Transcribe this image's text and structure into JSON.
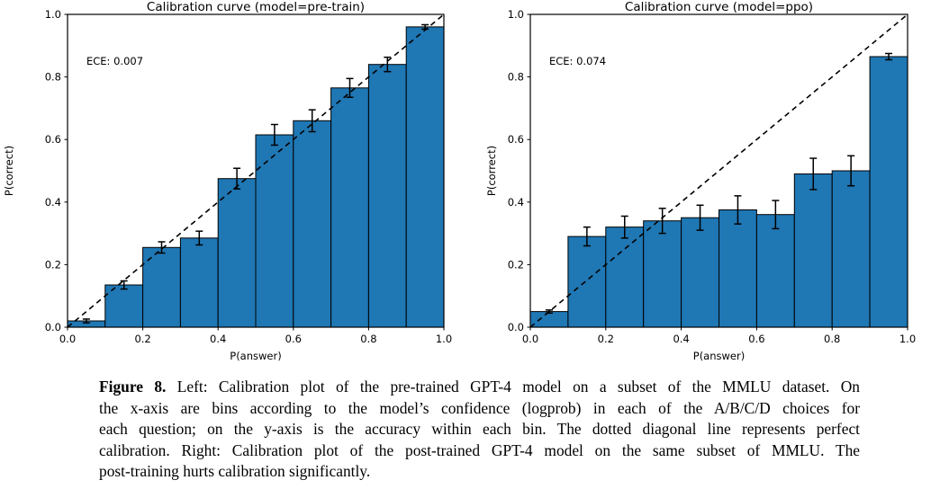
{
  "figure": {
    "caption": {
      "label": "Figure 8.",
      "lines": [
        " Left: Calibration plot of the pre-trained GPT-4 model on a subset of the MMLU dataset. On",
        "the x-axis are bins according to the model’s confidence (logprob) in each of the A/B/C/D choices for",
        "each question; on the y-axis is the accuracy within each bin. The dotted diagonal line represents perfect",
        "calibration. Right: Calibration plot of the post-trained GPT-4 model on the same subset of MMLU. The",
        "post-training hurts calibration significantly."
      ]
    }
  },
  "chart_data": [
    {
      "type": "bar",
      "title": "Calibration curve (model=pre-train)",
      "annotation": "ECE: 0.007",
      "xlabel": "P(answer)",
      "ylabel": "P(correct)",
      "xlim": [
        0.0,
        1.0
      ],
      "ylim": [
        0.0,
        1.0
      ],
      "xticks": [
        0.0,
        0.2,
        0.4,
        0.6,
        0.8,
        1.0
      ],
      "yticks": [
        0.0,
        0.2,
        0.4,
        0.6,
        0.8,
        1.0
      ],
      "bin_edges": [
        0.0,
        0.1,
        0.2,
        0.3,
        0.4,
        0.5,
        0.6,
        0.7,
        0.8,
        0.9,
        1.0
      ],
      "values": [
        0.02,
        0.135,
        0.255,
        0.285,
        0.475,
        0.615,
        0.66,
        0.765,
        0.84,
        0.96
      ],
      "errors": [
        0.006,
        0.013,
        0.018,
        0.022,
        0.033,
        0.033,
        0.035,
        0.03,
        0.023,
        0.007
      ],
      "diagonal_line": "perfect calibration (dashed y=x)",
      "grid": "off",
      "bar_color": "#1f77b4",
      "bar_edge_color": "#000000",
      "error_color": "#000000",
      "line_color": "#000000"
    },
    {
      "type": "bar",
      "title": "Calibration curve (model=ppo)",
      "annotation": "ECE: 0.074",
      "xlabel": "P(answer)",
      "ylabel": "P(correct)",
      "xlim": [
        0.0,
        1.0
      ],
      "ylim": [
        0.0,
        1.0
      ],
      "xticks": [
        0.0,
        0.2,
        0.4,
        0.6,
        0.8,
        1.0
      ],
      "yticks": [
        0.0,
        0.2,
        0.4,
        0.6,
        0.8,
        1.0
      ],
      "bin_edges": [
        0.0,
        0.1,
        0.2,
        0.3,
        0.4,
        0.5,
        0.6,
        0.7,
        0.8,
        0.9,
        1.0
      ],
      "values": [
        0.05,
        0.29,
        0.32,
        0.34,
        0.35,
        0.375,
        0.36,
        0.49,
        0.5,
        0.865
      ],
      "errors": [
        0.005,
        0.03,
        0.035,
        0.04,
        0.04,
        0.045,
        0.045,
        0.05,
        0.048,
        0.01
      ],
      "diagonal_line": "perfect calibration (dashed y=x)",
      "grid": "off",
      "bar_color": "#1f77b4",
      "bar_edge_color": "#000000",
      "error_color": "#000000",
      "line_color": "#000000"
    }
  ]
}
